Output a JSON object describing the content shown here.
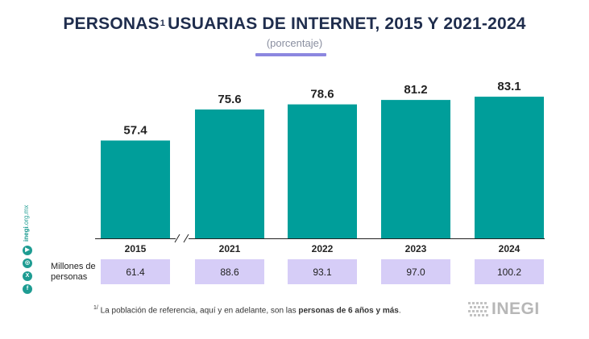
{
  "header": {
    "title_main": "PERSONAS",
    "title_sup": "1",
    "title_rest": "USUARIAS DE INTERNET, 2015 Y 2021-2024",
    "subtitle": "(porcentaje)"
  },
  "chart_data": {
    "type": "bar",
    "categories": [
      "2015",
      "2021",
      "2022",
      "2023",
      "2024"
    ],
    "values": [
      57.4,
      75.6,
      78.6,
      81.2,
      83.1
    ],
    "value_labels": [
      "57.4",
      "75.6",
      "78.6",
      "81.2",
      "83.1"
    ],
    "axis_break_between": [
      "2015",
      "2021"
    ],
    "bar_color": "#009e9a",
    "table_row": {
      "label": "Millones de personas",
      "values": [
        "61.4",
        "88.6",
        "93.1",
        "97.0",
        "100.2"
      ],
      "cell_color": "#d6cdf7"
    }
  },
  "footnote": {
    "sup": "1/",
    "text": "La población de referencia, aquí y en adelante, son las",
    "bold": "personas de 6 años y más",
    "end": "."
  },
  "sidebar": {
    "url_bold": "inegi",
    "url_rest": ".org.mx",
    "icons": [
      "facebook-icon",
      "x-icon",
      "instagram-icon",
      "youtube-icon"
    ]
  },
  "logo": {
    "text": "INEGI"
  },
  "colors": {
    "title": "#1f2d4d",
    "accent": "#8c87e0",
    "teal": "#009e9a",
    "lavender": "#d6cdf7"
  }
}
